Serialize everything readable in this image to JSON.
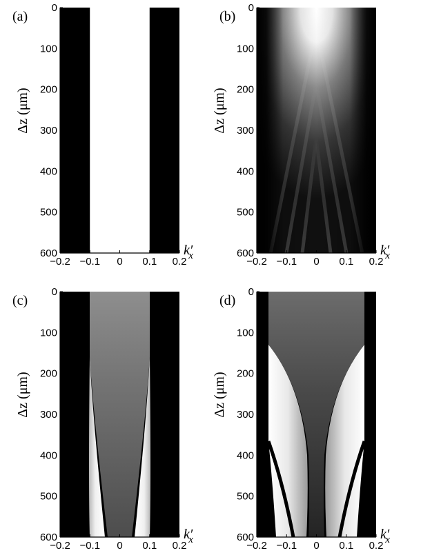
{
  "chart_data": [
    {
      "type": "heatmap",
      "panel_label": "(a)",
      "xlabel": "k′",
      "xlabel_sub": "x",
      "ylabel": "Δz (μm)",
      "xlim": [
        -0.2,
        0.2
      ],
      "ylim": [
        0,
        600
      ],
      "y_inverted": true,
      "xticks": [
        "-0.2",
        "-0.1",
        "0",
        "0.1",
        "0.2"
      ],
      "yticks": [
        "0",
        "100",
        "200",
        "300",
        "400",
        "500",
        "600"
      ],
      "colormap": "grayscale",
      "description_values": {
        "bright_region_kx": [
          -0.1,
          0.1
        ]
      }
    },
    {
      "type": "heatmap",
      "panel_label": "(b)",
      "xlabel": "k′",
      "xlabel_sub": "x",
      "ylabel": "Δz (μm)",
      "xlim": [
        -0.2,
        0.2
      ],
      "ylim": [
        0,
        600
      ],
      "y_inverted": true,
      "xticks": [
        "-0.2",
        "-0.1",
        "0",
        "0.1",
        "0.2"
      ],
      "yticks": [
        "0",
        "100",
        "200",
        "300",
        "400",
        "500",
        "600"
      ],
      "colormap": "grayscale",
      "description_values": {
        "bright_region_kx": [
          -0.16,
          0.16
        ]
      }
    },
    {
      "type": "heatmap",
      "panel_label": "(c)",
      "xlabel": "k′",
      "xlabel_sub": "x",
      "ylabel": "Δz (μm)",
      "xlim": [
        -0.2,
        0.2
      ],
      "ylim": [
        0,
        600
      ],
      "y_inverted": true,
      "xticks": [
        "-0.2",
        "-0.1",
        "0",
        "0.1",
        "0.2"
      ],
      "yticks": [
        "0",
        "100",
        "200",
        "300",
        "400",
        "500",
        "600"
      ],
      "colormap": "grayscale",
      "description_values": {
        "bright_region_kx": [
          -0.1,
          0.1
        ],
        "branch_start_z": 160
      }
    },
    {
      "type": "heatmap",
      "panel_label": "(d)",
      "xlabel": "k′",
      "xlabel_sub": "x",
      "ylabel": "Δz (μm)",
      "xlim": [
        -0.2,
        0.2
      ],
      "ylim": [
        0,
        600
      ],
      "y_inverted": true,
      "xticks": [
        "-0.2",
        "-0.1",
        "0",
        "0.1",
        "0.2"
      ],
      "yticks": [
        "0",
        "100",
        "200",
        "300",
        "400",
        "500",
        "600"
      ],
      "colormap": "grayscale",
      "description_values": {
        "bright_region_kx": [
          -0.16,
          0.16
        ],
        "branch_start_z": 130
      }
    }
  ]
}
